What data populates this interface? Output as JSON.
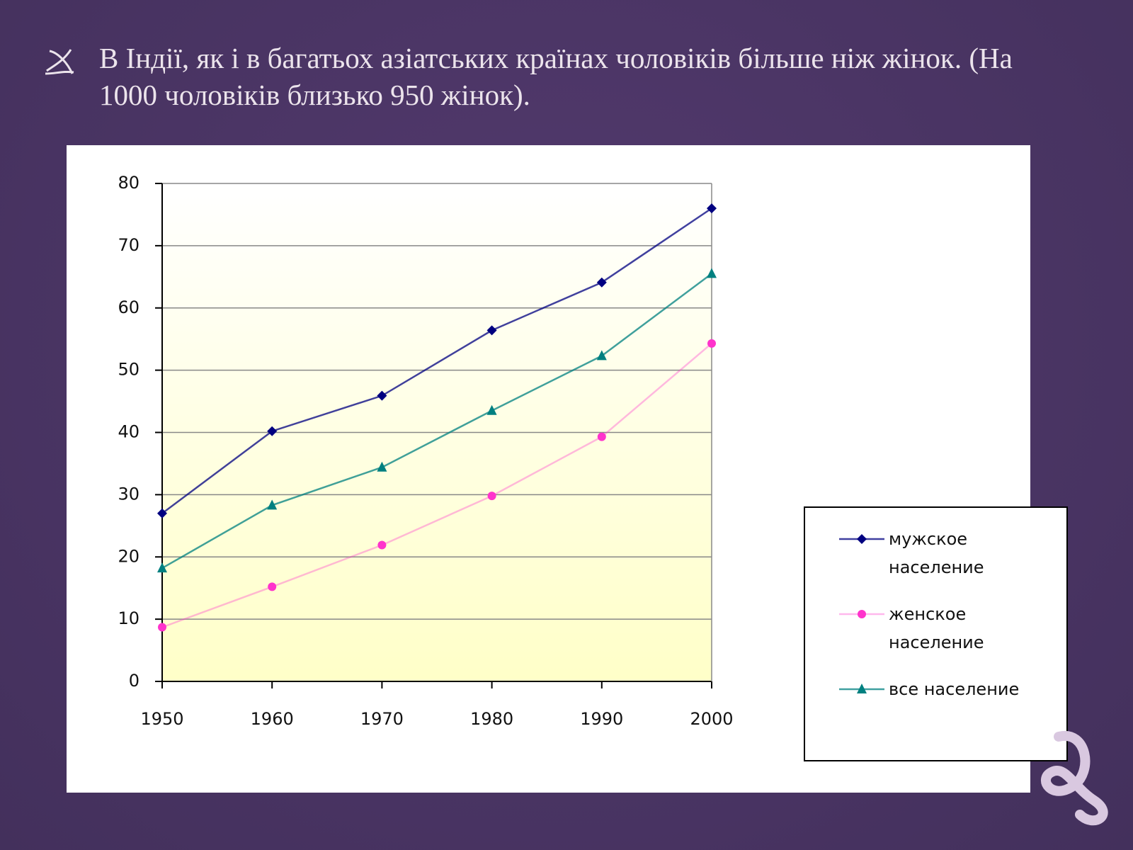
{
  "slide": {
    "bullet": "В Індії, як і в багатьох азіатських країнах чоловіків більше ніж жінок. (На 1000 чоловіків близько 950 жінок)."
  },
  "chart_data": {
    "type": "line",
    "x": [
      1950,
      1960,
      1970,
      1980,
      1990,
      2000
    ],
    "xlim": [
      1950,
      2000
    ],
    "xticks": [
      1950,
      1960,
      1970,
      1980,
      1990,
      2000
    ],
    "ylim": [
      0,
      80
    ],
    "yticks": [
      0,
      10,
      20,
      30,
      40,
      50,
      60,
      70,
      80
    ],
    "grid": true,
    "legend": "right",
    "series": [
      {
        "name": "мужское население",
        "color": "#000080",
        "marker": "diamond",
        "values": [
          27,
          40.2,
          45.9,
          56.4,
          64.1,
          76
        ]
      },
      {
        "name": "женское население",
        "color": "#ff33cc",
        "marker": "circle",
        "values": [
          8.7,
          15.2,
          21.9,
          29.8,
          39.3,
          54.3
        ]
      },
      {
        "name": "все население",
        "color": "#008080",
        "marker": "triangle",
        "values": [
          18.2,
          28.3,
          34.4,
          43.5,
          52.3,
          65.5
        ]
      }
    ]
  }
}
